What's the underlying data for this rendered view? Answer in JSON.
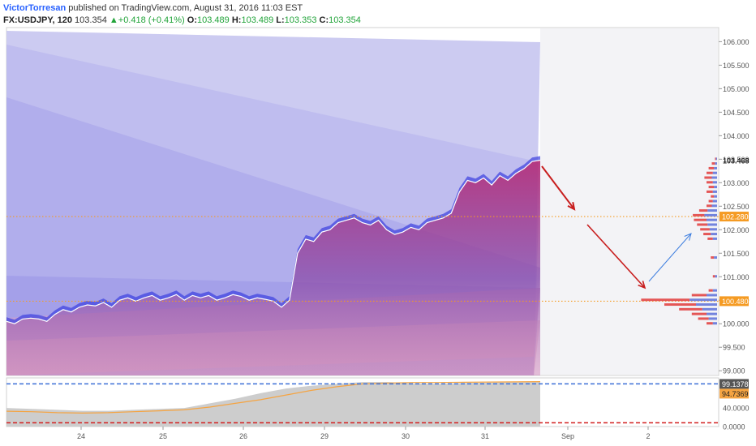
{
  "header": {
    "author": "VictorTorresan",
    "published_text": "published on TradingView.com, August 31, 2016 11:03 EST",
    "symbol": "FX:USDJPY, 120",
    "last": "103.354",
    "change": "+0.418 (+0.41%)",
    "open_label": "O:",
    "open": "103.489",
    "high_label": "H:",
    "high": "103.489",
    "low_label": "L:",
    "low": "103.353",
    "close_label": "C:",
    "close": "103.354"
  },
  "colors": {
    "price_fill": "#8f3f9c",
    "volume_profile_up": "#5a6fd8",
    "volume_profile_down": "#e03a3a",
    "orange_level": "#f59b23",
    "red_arrow": "#c81e1e",
    "blue_arrow": "#3f7fe0",
    "osc_blue": "#3b6fd6",
    "osc_red": "#d21e1e",
    "osc_orange": "#f5a442"
  },
  "chart_data": {
    "type": "area",
    "symbol": "FX:USDJPY",
    "interval": "120",
    "price_axis": {
      "range": [
        98.9,
        106.3
      ],
      "ticks": [
        "99.000",
        "99.500",
        "100.000",
        "100.500",
        "101.000",
        "101.500",
        "102.000",
        "102.500",
        "103.000",
        "103.500",
        "104.000",
        "104.500",
        "105.000",
        "105.500",
        "106.000"
      ]
    },
    "time_axis": {
      "ticks": [
        "24",
        "25",
        "26",
        "29",
        "30",
        "31",
        "Sep",
        "2"
      ]
    },
    "series": [
      {
        "name": "USDJPY",
        "x": [
          0,
          2,
          4,
          6,
          8,
          10,
          12,
          14,
          16,
          18,
          20,
          22,
          24,
          26,
          28,
          30,
          32,
          34,
          36,
          38,
          40,
          42,
          44,
          46,
          48,
          50,
          52,
          54,
          56,
          58,
          60,
          62,
          64,
          66,
          68,
          70,
          72,
          74,
          76,
          78,
          80,
          82,
          84,
          86,
          88,
          90,
          92,
          94,
          96,
          98,
          100,
          102,
          104,
          106,
          108,
          110,
          112,
          114,
          116,
          118,
          120,
          122,
          124,
          126,
          128,
          130,
          132
        ],
        "values": [
          100.05,
          100.0,
          100.1,
          100.12,
          100.1,
          100.05,
          100.2,
          100.3,
          100.25,
          100.35,
          100.4,
          100.38,
          100.45,
          100.35,
          100.5,
          100.55,
          100.48,
          100.55,
          100.6,
          100.5,
          100.55,
          100.62,
          100.5,
          100.6,
          100.55,
          100.6,
          100.5,
          100.55,
          100.62,
          100.58,
          100.5,
          100.55,
          100.52,
          100.48,
          100.35,
          100.5,
          101.5,
          101.8,
          101.75,
          101.95,
          102.0,
          102.15,
          102.2,
          102.25,
          102.15,
          102.1,
          102.2,
          102.0,
          101.9,
          101.95,
          102.05,
          102.0,
          102.15,
          102.2,
          102.25,
          102.35,
          102.8,
          103.05,
          103.0,
          103.1,
          102.95,
          103.15,
          103.05,
          103.2,
          103.3,
          103.45,
          103.48
        ]
      }
    ],
    "levels": [
      {
        "label": "102.280",
        "value": 102.28
      },
      {
        "label": "100.480",
        "value": 100.48
      }
    ],
    "last_price_label": "103.468",
    "oscillator": {
      "axis_ticks": [
        "0.0000",
        "40.0000"
      ],
      "current_label": "94.7369",
      "hidden_label": "99.1378",
      "levels": [
        92,
        8
      ],
      "orange_line": [
        33,
        32,
        30,
        29,
        30,
        32,
        34,
        36,
        42,
        50,
        58,
        68,
        78,
        86,
        92,
        94,
        95,
        95,
        95.5,
        96,
        96.5,
        97
      ],
      "gray_area": [
        40,
        38,
        36,
        34,
        34,
        36,
        38,
        40,
        50,
        60,
        72,
        82,
        88,
        92,
        96,
        96,
        93,
        92,
        94,
        95,
        96,
        97
      ]
    },
    "volume_profile": {
      "price_levels": [
        100.0,
        100.1,
        100.2,
        100.3,
        100.4,
        100.5,
        100.6,
        100.7,
        101.0,
        101.4,
        101.8,
        101.9,
        102.0,
        102.1,
        102.2,
        102.3,
        102.4,
        102.5,
        102.6,
        102.7,
        102.8,
        102.9,
        103.0,
        103.1,
        103.2,
        103.3,
        103.4,
        103.5
      ],
      "up": [
        4,
        8,
        10,
        14,
        20,
        26,
        10,
        4,
        2,
        3,
        4,
        6,
        7,
        9,
        10,
        12,
        9,
        5,
        4,
        3,
        4,
        3,
        4,
        5,
        4,
        3,
        2,
        1
      ],
      "down": [
        6,
        10,
        14,
        22,
        30,
        46,
        14,
        4,
        2,
        3,
        5,
        7,
        9,
        10,
        12,
        11,
        8,
        5,
        4,
        3,
        6,
        5,
        6,
        7,
        6,
        5,
        3,
        1
      ]
    }
  }
}
